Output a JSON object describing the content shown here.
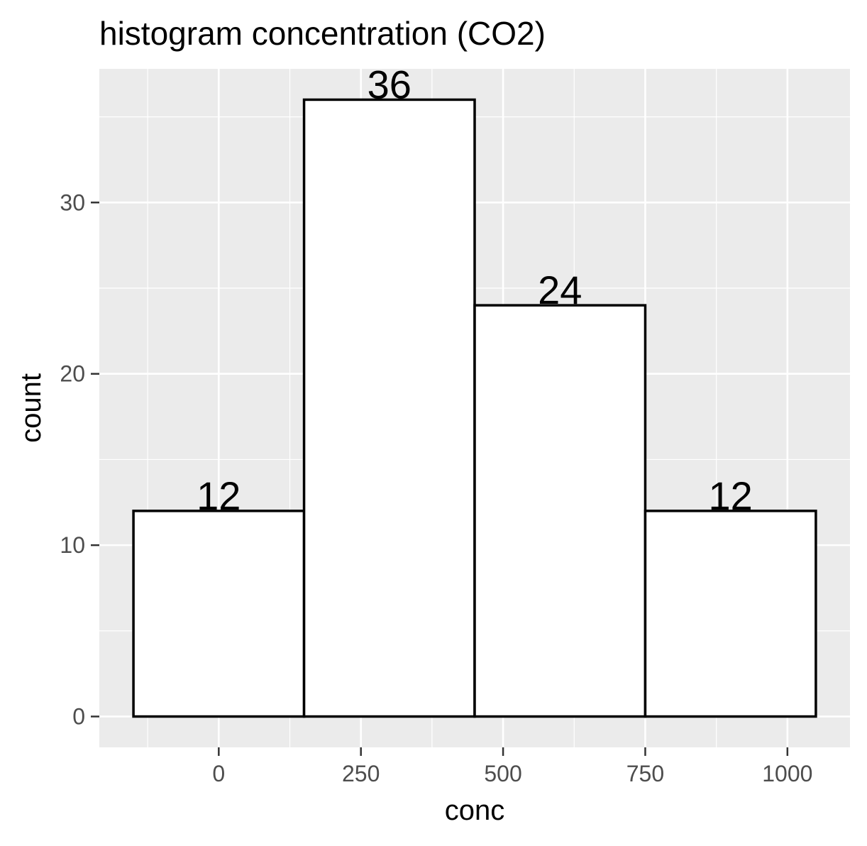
{
  "chart_data": {
    "type": "bar",
    "title": "histogram concentration (CO2)",
    "xlabel": "conc",
    "ylabel": "count",
    "bins": [
      {
        "x_start": -150,
        "x_end": 150,
        "count": 12,
        "label": "12"
      },
      {
        "x_start": 150,
        "x_end": 450,
        "count": 36,
        "label": "36"
      },
      {
        "x_start": 450,
        "x_end": 750,
        "count": 24,
        "label": "24"
      },
      {
        "x_start": 750,
        "x_end": 1050,
        "count": 12,
        "label": "12"
      }
    ],
    "xlim": [
      -210,
      1110
    ],
    "ylim": [
      -1.8,
      37.8
    ],
    "x_ticks": [
      0,
      250,
      500,
      750,
      1000
    ],
    "x_tick_labels": [
      "0",
      "250",
      "500",
      "750",
      "1000"
    ],
    "y_ticks": [
      0,
      10,
      20,
      30
    ],
    "y_tick_labels": [
      "0",
      "10",
      "20",
      "30"
    ],
    "x_minor_ticks": [
      -125,
      125,
      375,
      625,
      875
    ],
    "y_minor_ticks": [
      5,
      15,
      25,
      35
    ],
    "grid": true,
    "legend": "none",
    "colors": {
      "panel_background": "#ebebeb",
      "grid": "#ffffff",
      "bar_fill": "#ffffff",
      "bar_outline": "#000000",
      "tick_label": "#4d4d4d",
      "axis_tick": "#333333"
    }
  }
}
